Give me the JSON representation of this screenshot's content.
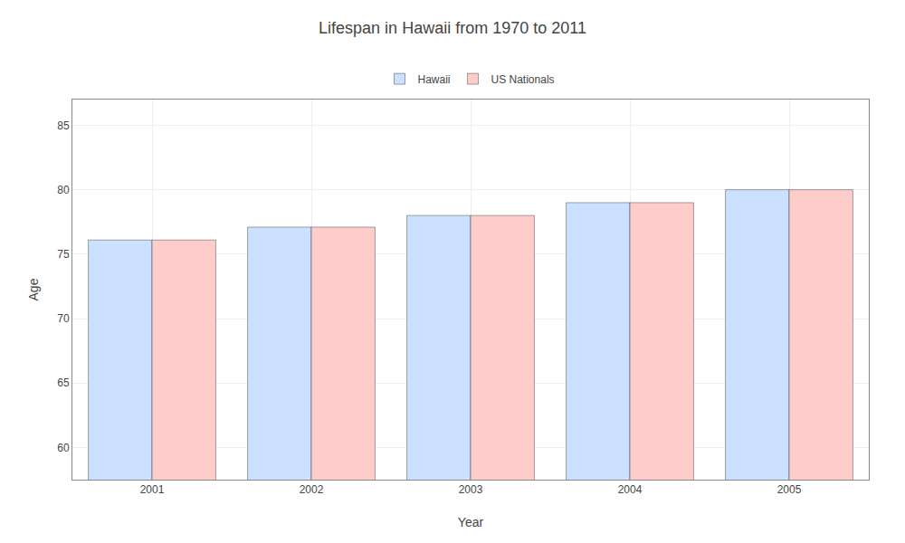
{
  "chart_data": {
    "type": "bar",
    "title": "Lifespan in Hawaii from 1970 to 2011",
    "xlabel": "Year",
    "ylabel": "Age",
    "categories": [
      "2001",
      "2002",
      "2003",
      "2004",
      "2005"
    ],
    "series": [
      {
        "name": "Hawaii",
        "color": "#cce0ff",
        "values": [
          76.1,
          77.1,
          78.0,
          79.0,
          80.0
        ]
      },
      {
        "name": "US Nationals",
        "color": "#ffcccc",
        "values": [
          76.1,
          77.1,
          78.0,
          79.0,
          80.0
        ]
      }
    ],
    "ylim": [
      57.5,
      87
    ],
    "yticks": [
      60,
      65,
      70,
      75,
      80,
      85
    ],
    "grid": true,
    "legend": "top"
  }
}
